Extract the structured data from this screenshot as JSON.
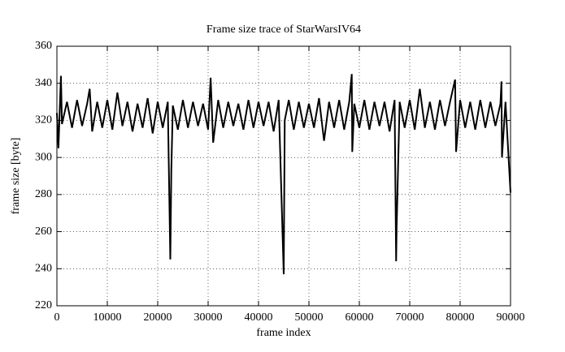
{
  "chart_data": {
    "type": "line",
    "title": "Frame size trace of StarWarsIV64",
    "x_label": "frame index",
    "y_label": "frame size [byte]",
    "grid": true,
    "xlim": [
      0,
      90000
    ],
    "ylim": [
      220,
      360
    ],
    "xticks": [
      0,
      10000,
      20000,
      30000,
      40000,
      50000,
      60000,
      70000,
      80000,
      90000
    ],
    "yticks": [
      220,
      240,
      260,
      280,
      300,
      320,
      340,
      360
    ],
    "x": [
      0,
      300,
      800,
      1000,
      2000,
      3000,
      4000,
      5000,
      6000,
      6500,
      7000,
      8000,
      9000,
      10000,
      11000,
      12000,
      13000,
      14000,
      15000,
      16000,
      17000,
      18000,
      19000,
      20000,
      21000,
      22000,
      22500,
      22700,
      23000,
      24000,
      25000,
      26000,
      27000,
      28000,
      29000,
      30000,
      30500,
      31000,
      32000,
      33000,
      34000,
      35000,
      36000,
      37000,
      38000,
      39000,
      40000,
      41000,
      42000,
      43000,
      44000,
      45000,
      45200,
      46000,
      47000,
      48000,
      49000,
      50000,
      51000,
      52000,
      53000,
      54000,
      55000,
      56000,
      57000,
      58000,
      58500,
      58600,
      59000,
      60000,
      61000,
      62000,
      63000,
      64000,
      65000,
      66000,
      67000,
      67300,
      67400,
      68000,
      69000,
      70000,
      71000,
      72000,
      73000,
      74000,
      75000,
      76000,
      77000,
      78000,
      79000,
      79200,
      80000,
      81000,
      82000,
      83000,
      84000,
      85000,
      86000,
      87000,
      88000,
      88200,
      88300,
      89000,
      90000
    ],
    "series": [
      {
        "color": "#000000",
        "values": [
          324,
          305,
          344,
          318,
          330,
          316,
          331,
          317,
          329,
          337,
          314,
          330,
          316,
          331,
          315,
          335,
          317,
          330,
          314,
          329,
          316,
          332,
          313,
          330,
          316,
          330,
          245,
          293,
          328,
          315,
          331,
          316,
          330,
          317,
          329,
          315,
          343,
          308,
          331,
          316,
          330,
          317,
          329,
          315,
          331,
          316,
          330,
          317,
          330,
          314,
          331,
          237,
          320,
          331,
          315,
          330,
          316,
          329,
          316,
          332,
          309,
          330,
          316,
          331,
          315,
          330,
          345,
          303,
          329,
          316,
          331,
          315,
          330,
          317,
          330,
          314,
          331,
          244,
          262,
          330,
          316,
          331,
          315,
          337,
          316,
          330,
          315,
          331,
          317,
          330,
          342,
          303,
          331,
          316,
          330,
          315,
          331,
          316,
          330,
          317,
          329,
          341,
          300,
          330,
          281
        ]
      }
    ]
  }
}
